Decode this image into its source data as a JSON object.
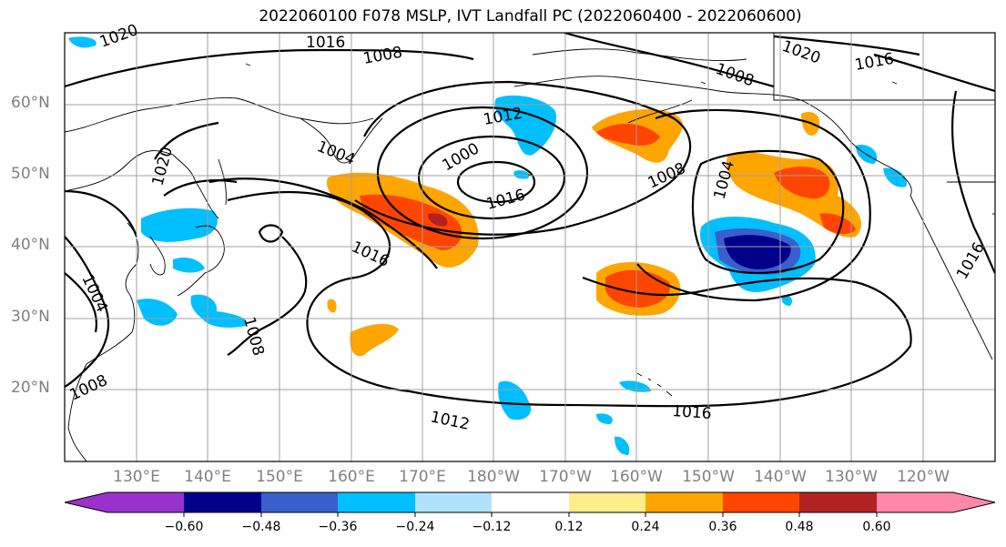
{
  "title": "2022060100 F078 MSLP, IVT Landfall PC (2022060400 - 2022060600)",
  "lat_labels": [
    "60°N",
    "50°N",
    "40°N",
    "30°N",
    "20°N"
  ],
  "lon_labels": [
    "130°E",
    "140°E",
    "150°E",
    "160°E",
    "170°E",
    "180°W",
    "170°W",
    "160°W",
    "150°W",
    "140°W",
    "130°W",
    "120°W"
  ],
  "isobar_labels": [
    "1020",
    "1016",
    "1008",
    "1012",
    "1004",
    "1000",
    "1016",
    "1020",
    "1016",
    "1008",
    "1004",
    "1016",
    "1016",
    "1012",
    "1008",
    "1004",
    "1008",
    "1016",
    "1008",
    "1020",
    "1012"
  ],
  "colorbar": {
    "ticks": [
      "−0.60",
      "−0.48",
      "−0.36",
      "−0.24",
      "−0.12",
      "0.12",
      "0.24",
      "0.36",
      "0.48",
      "0.60"
    ],
    "colors": [
      "#9932CC",
      "#00008B",
      "#3A5FCD",
      "#00BFFF",
      "#B0E2FF",
      "#FFFFFF",
      "#FFEC8B",
      "#FFA500",
      "#FF4500",
      "#B22222",
      "#FF88AA"
    ]
  },
  "colors": {
    "frame": "#000000",
    "grid": "#A0A0A0",
    "coast": "#000000",
    "axis_text": "#808080"
  }
}
